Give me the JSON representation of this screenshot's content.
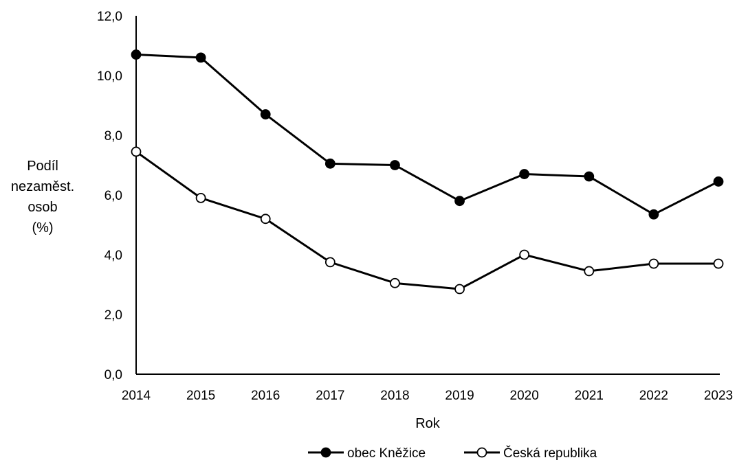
{
  "chart_data": {
    "type": "line",
    "categories": [
      "2014",
      "2015",
      "2016",
      "2017",
      "2018",
      "2019",
      "2020",
      "2021",
      "2022",
      "2023"
    ],
    "series": [
      {
        "name": "obec Kněžice",
        "marker": "filled-circle",
        "color": "#000000",
        "values": [
          10.7,
          10.6,
          8.7,
          7.05,
          7.0,
          5.8,
          6.7,
          6.62,
          5.35,
          6.45
        ]
      },
      {
        "name": "Česká republika",
        "marker": "open-circle",
        "color": "#000000",
        "values": [
          7.45,
          5.9,
          5.2,
          3.75,
          3.05,
          2.85,
          4.0,
          3.45,
          3.7,
          3.7
        ]
      }
    ],
    "title": "",
    "xlabel": "Rok",
    "ylabel_lines": [
      "Podíl",
      "nezaměst.",
      "osob",
      "(%)"
    ],
    "ylim": [
      0,
      12
    ],
    "yticks": [
      "0,0",
      "2,0",
      "4,0",
      "6,0",
      "8,0",
      "10,0",
      "12,0"
    ],
    "grid": false,
    "legend_position": "bottom"
  }
}
